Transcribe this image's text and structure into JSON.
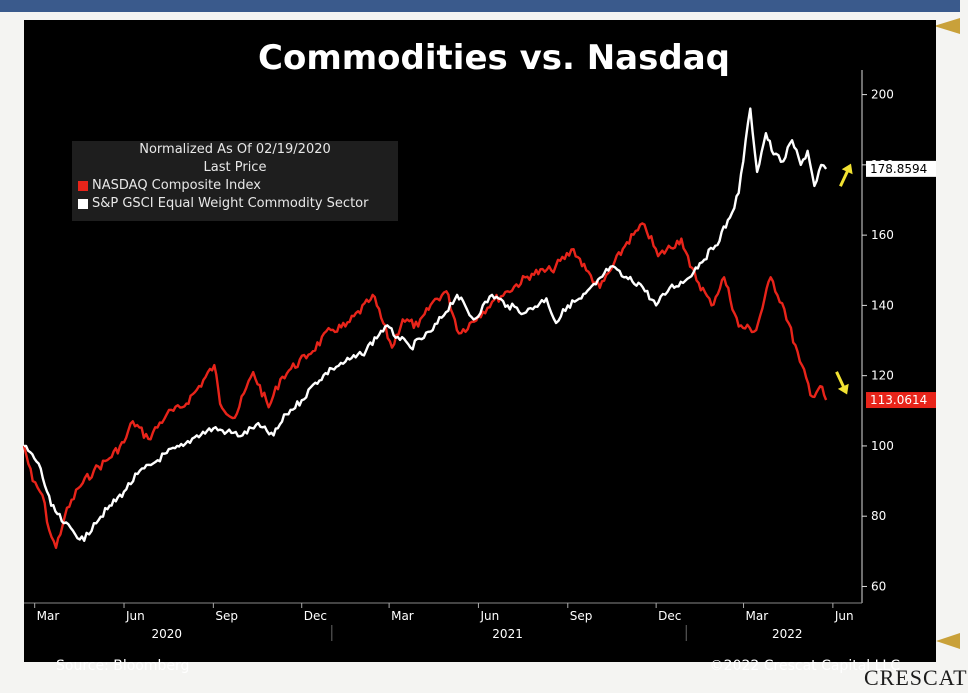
{
  "chart_data": {
    "type": "line",
    "title": "Commodities vs. Nasdaq",
    "legend": {
      "header": [
        "Normalized As Of 02/19/2020",
        "Last Price"
      ],
      "placement": "top-left"
    },
    "y_axis": {
      "side": "right",
      "ylim": [
        57,
        207
      ],
      "ticks": [
        60,
        80,
        100,
        120,
        140,
        160,
        180,
        200
      ],
      "grid": false
    },
    "x_axis": {
      "range": [
        "2020-02-19",
        "2022-07-01"
      ],
      "month_ticks": [
        {
          "label": "Mar",
          "date": "2020-03-01"
        },
        {
          "label": "Jun",
          "date": "2020-06-01"
        },
        {
          "label": "Sep",
          "date": "2020-09-01"
        },
        {
          "label": "Dec",
          "date": "2020-12-01"
        },
        {
          "label": "Mar",
          "date": "2021-03-01"
        },
        {
          "label": "Jun",
          "date": "2021-06-01"
        },
        {
          "label": "Sep",
          "date": "2021-09-01"
        },
        {
          "label": "Dec",
          "date": "2021-12-01"
        },
        {
          "label": "Mar",
          "date": "2022-03-01"
        },
        {
          "label": "Jun",
          "date": "2022-06-01"
        }
      ],
      "year_labels": [
        {
          "label": "2020",
          "date": "2020-07-15"
        },
        {
          "label": "2021",
          "date": "2021-07-01"
        },
        {
          "label": "2022",
          "date": "2022-04-15"
        }
      ],
      "year_separators": [
        "2021-01-01",
        "2022-01-01"
      ]
    },
    "series": [
      {
        "name": "NASDAQ Composite Index",
        "color": "#e8241a",
        "last_value": "113.0614",
        "points": [
          [
            "2020-02-19",
            100
          ],
          [
            "2020-02-28",
            90
          ],
          [
            "2020-03-09",
            86
          ],
          [
            "2020-03-16",
            76
          ],
          [
            "2020-03-23",
            71
          ],
          [
            "2020-04-01",
            80
          ],
          [
            "2020-04-15",
            88
          ],
          [
            "2020-05-01",
            93
          ],
          [
            "2020-05-15",
            96
          ],
          [
            "2020-06-01",
            101
          ],
          [
            "2020-06-10",
            107
          ],
          [
            "2020-06-26",
            102
          ],
          [
            "2020-07-15",
            109
          ],
          [
            "2020-07-31",
            111
          ],
          [
            "2020-08-15",
            116
          ],
          [
            "2020-09-02",
            123
          ],
          [
            "2020-09-08",
            112
          ],
          [
            "2020-09-23",
            108
          ],
          [
            "2020-10-12",
            121
          ],
          [
            "2020-10-28",
            111
          ],
          [
            "2020-11-09",
            119
          ],
          [
            "2020-11-20",
            122
          ],
          [
            "2020-12-08",
            126
          ],
          [
            "2020-12-31",
            133
          ],
          [
            "2021-01-15",
            134
          ],
          [
            "2021-02-08",
            141
          ],
          [
            "2021-02-12",
            143
          ],
          [
            "2021-03-04",
            128
          ],
          [
            "2021-03-15",
            136
          ],
          [
            "2021-03-31",
            134
          ],
          [
            "2021-04-15",
            141
          ],
          [
            "2021-04-29",
            144
          ],
          [
            "2021-05-12",
            132
          ],
          [
            "2021-06-01",
            137
          ],
          [
            "2021-06-15",
            141
          ],
          [
            "2021-07-01",
            144
          ],
          [
            "2021-07-26",
            149
          ],
          [
            "2021-08-15",
            150
          ],
          [
            "2021-09-07",
            156
          ],
          [
            "2021-09-20",
            150
          ],
          [
            "2021-10-04",
            145
          ],
          [
            "2021-10-15",
            150
          ],
          [
            "2021-11-01",
            158
          ],
          [
            "2021-11-19",
            163
          ],
          [
            "2021-12-03",
            154
          ],
          [
            "2021-12-27",
            159
          ],
          [
            "2022-01-05",
            151
          ],
          [
            "2022-01-27",
            140
          ],
          [
            "2022-02-09",
            148
          ],
          [
            "2022-02-24",
            134
          ],
          [
            "2022-03-14",
            133
          ],
          [
            "2022-03-29",
            148
          ],
          [
            "2022-04-12",
            139
          ],
          [
            "2022-04-28",
            124
          ],
          [
            "2022-05-11",
            114
          ],
          [
            "2022-05-19",
            117
          ],
          [
            "2022-05-25",
            113.06
          ]
        ]
      },
      {
        "name": "S&P GSCI Equal Weight Commodity Sector",
        "color": "#ffffff",
        "last_value": "178.8594",
        "points": [
          [
            "2020-02-19",
            100
          ],
          [
            "2020-03-05",
            95
          ],
          [
            "2020-03-18",
            83
          ],
          [
            "2020-03-31",
            78
          ],
          [
            "2020-04-21",
            73
          ],
          [
            "2020-05-01",
            78
          ],
          [
            "2020-05-15",
            82
          ],
          [
            "2020-06-01",
            87
          ],
          [
            "2020-06-15",
            92
          ],
          [
            "2020-07-01",
            95
          ],
          [
            "2020-07-15",
            98
          ],
          [
            "2020-08-01",
            100
          ],
          [
            "2020-08-15",
            103
          ],
          [
            "2020-09-01",
            105
          ],
          [
            "2020-09-15",
            104
          ],
          [
            "2020-10-01",
            103
          ],
          [
            "2020-10-15",
            106
          ],
          [
            "2020-11-02",
            103
          ],
          [
            "2020-11-15",
            109
          ],
          [
            "2020-12-01",
            113
          ],
          [
            "2020-12-15",
            118
          ],
          [
            "2021-01-01",
            122
          ],
          [
            "2021-01-15",
            124
          ],
          [
            "2021-02-01",
            126
          ],
          [
            "2021-02-25",
            134
          ],
          [
            "2021-03-10",
            131
          ],
          [
            "2021-03-23",
            128
          ],
          [
            "2021-04-15",
            133
          ],
          [
            "2021-05-10",
            143
          ],
          [
            "2021-05-27",
            136
          ],
          [
            "2021-06-15",
            143
          ],
          [
            "2021-07-01",
            140
          ],
          [
            "2021-07-20",
            138
          ],
          [
            "2021-08-10",
            142
          ],
          [
            "2021-08-20",
            135
          ],
          [
            "2021-09-01",
            140
          ],
          [
            "2021-09-15",
            142
          ],
          [
            "2021-09-30",
            146
          ],
          [
            "2021-10-15",
            151
          ],
          [
            "2021-10-29",
            148
          ],
          [
            "2021-11-15",
            146
          ],
          [
            "2021-12-01",
            140
          ],
          [
            "2021-12-15",
            145
          ],
          [
            "2021-12-31",
            147
          ],
          [
            "2022-01-15",
            152
          ],
          [
            "2022-01-31",
            157
          ],
          [
            "2022-02-15",
            165
          ],
          [
            "2022-02-24",
            172
          ],
          [
            "2022-03-08",
            196
          ],
          [
            "2022-03-15",
            178
          ],
          [
            "2022-03-24",
            189
          ],
          [
            "2022-04-01",
            183
          ],
          [
            "2022-04-11",
            181
          ],
          [
            "2022-04-20",
            187
          ],
          [
            "2022-04-29",
            180
          ],
          [
            "2022-05-06",
            184
          ],
          [
            "2022-05-13",
            174
          ],
          [
            "2022-05-20",
            180
          ],
          [
            "2022-05-25",
            178.86
          ]
        ]
      }
    ],
    "annotations": [
      "up-arrow",
      "down-arrow"
    ]
  },
  "legend_label_nasdaq": "NASDAQ Composite Index",
  "legend_label_gsci": "S&P GSCI Equal Weight Commodity Sector",
  "source_text": "Source: Bloomberg",
  "copyright_text": "©2022 Crescat Capital LLC",
  "footer_logo_text": "CRESCAT",
  "colors": {
    "nasdaq": "#e8241a",
    "commodity": "#ffffff",
    "arrow": "#f2e232",
    "panel": "#000000",
    "brand_blue": "#3a5a8c",
    "gold": "#c9a13a"
  },
  "icons": {
    "up": "arrow-up-icon",
    "down": "arrow-down-icon"
  }
}
